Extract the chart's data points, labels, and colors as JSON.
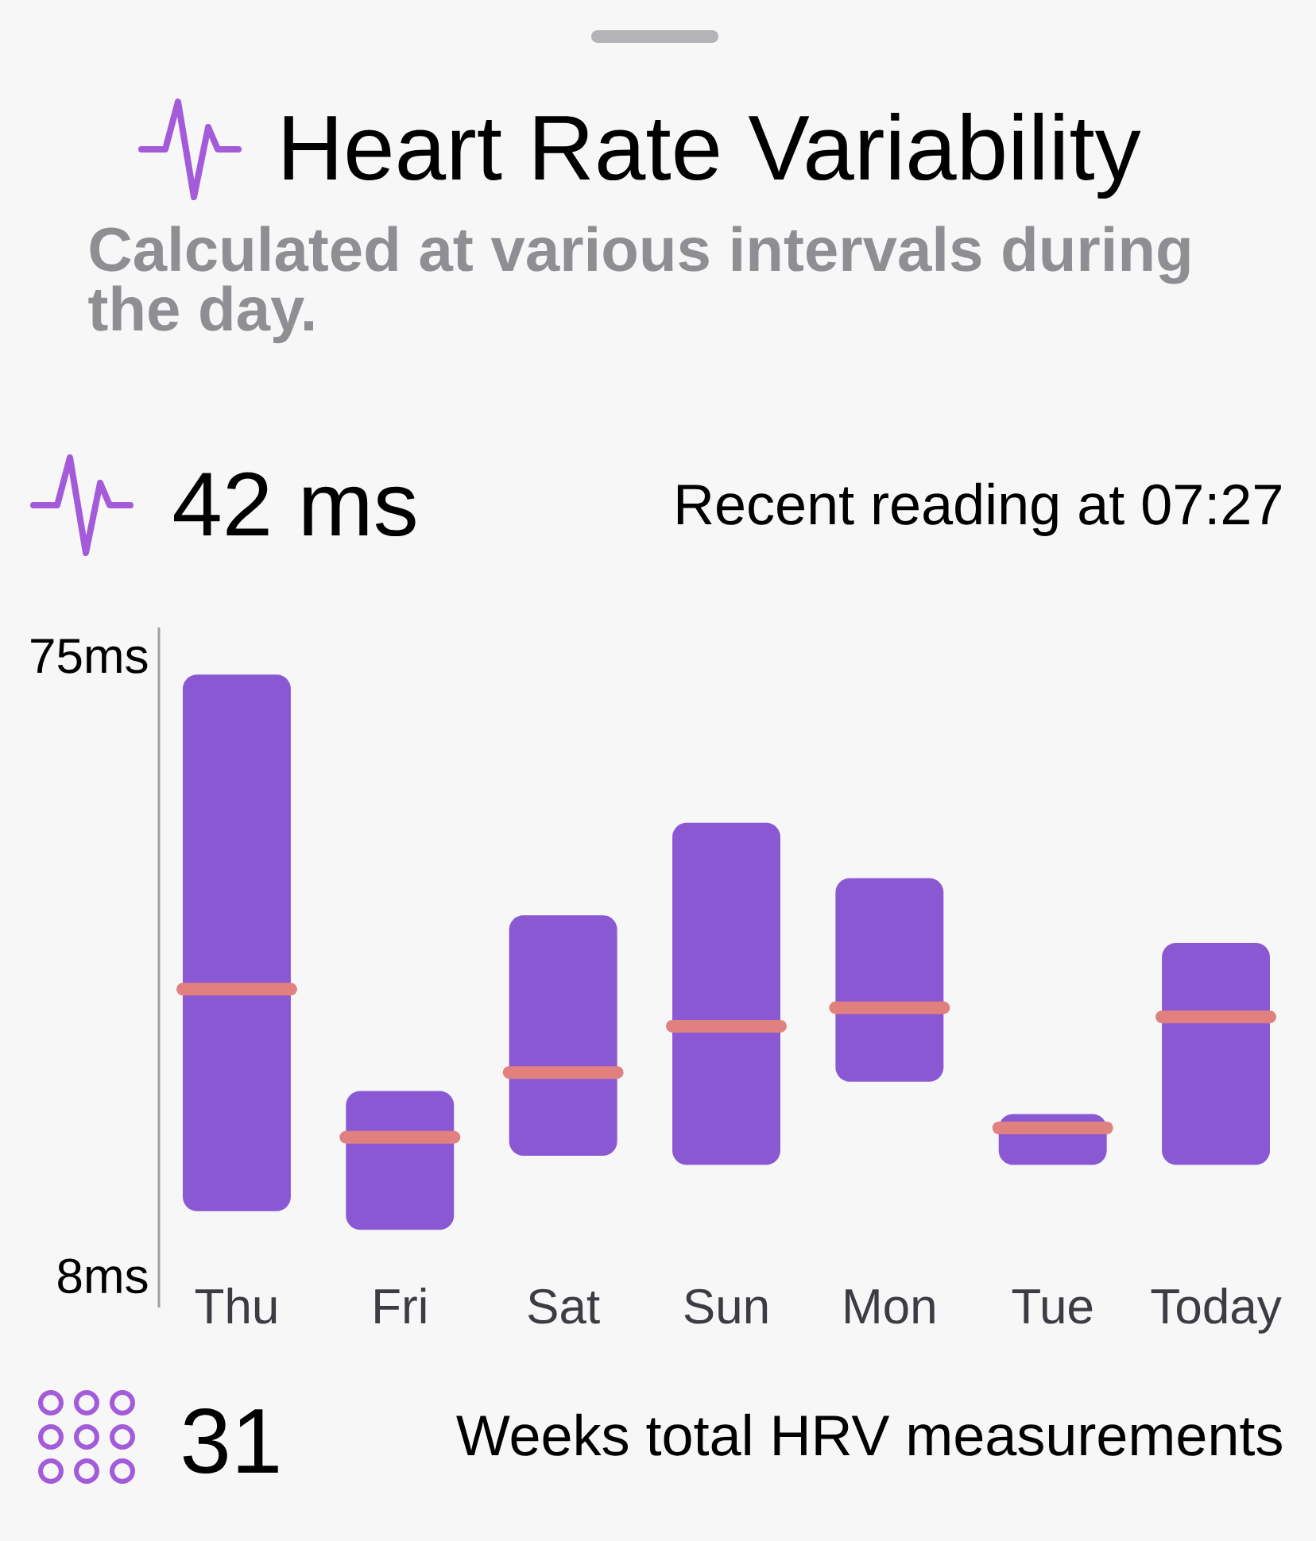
{
  "chart_data": {
    "type": "box",
    "title": "Heart Rate Variability",
    "subtitle": "Calculated at various intervals during the day.",
    "categories": [
      "Thu",
      "Fri",
      "Sat",
      "Sun",
      "Mon",
      "Tue",
      "Today"
    ],
    "color": "#8b58d4",
    "boxes": [
      {
        "low": 15,
        "q1": 15,
        "median": 39,
        "q3": 73,
        "high": 73
      },
      {
        "low": 13,
        "q1": 13,
        "median": 23,
        "q3": 28,
        "high": 28
      },
      {
        "low": 21,
        "q1": 21,
        "median": 30,
        "q3": 47,
        "high": 47
      },
      {
        "low": 20,
        "q1": 20,
        "median": 35,
        "q3": 57,
        "high": 57
      },
      {
        "low": 29,
        "q1": 29,
        "median": 37,
        "q3": 51,
        "high": 51
      },
      {
        "low": 20,
        "q1": 20,
        "median": 24,
        "q3": 25.5,
        "high": 25.5
      },
      {
        "low": 20,
        "q1": 20,
        "median": 36,
        "q3": 44,
        "high": 44
      }
    ],
    "ylim": [
      4.6,
      78.1
    ],
    "yticks": [
      {
        "value": 75,
        "label": "75ms"
      },
      {
        "value": 8,
        "label": "8ms"
      }
    ],
    "annotations": [
      "42 ms",
      "Recent reading at 07:27",
      "31",
      "Weeks total HRV measurements"
    ]
  }
}
